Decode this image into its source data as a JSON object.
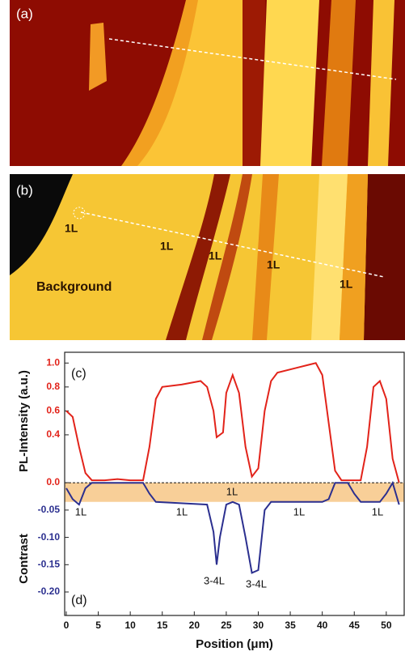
{
  "images": {
    "a": {
      "label": "(a)"
    },
    "b": {
      "label": "(b)",
      "annotations": [
        "1L",
        "1L",
        "1L",
        "1L",
        "1L",
        "Background"
      ]
    }
  },
  "chart_data": {
    "type": "line",
    "xlabel": "Position (μm)",
    "ylabel": "PL-Intensity (a.u.)",
    "y2label": "Contrast",
    "xlim": [
      -0.25,
      52.8
    ],
    "xticks": [
      0,
      5,
      10,
      15,
      20,
      25,
      30,
      35,
      40,
      45,
      50
    ],
    "ylim": [
      -1.11,
      1.09
    ],
    "yticks": [
      0.0,
      0.4,
      0.6,
      0.8,
      1.0
    ],
    "y2lim": [
      -0.243,
      0.239
    ],
    "y2ticks": [
      -0.2,
      -0.15,
      -0.1,
      -0.05
    ],
    "band_y2": [
      -0.035,
      0
    ],
    "band_color": "#f8cf98",
    "annotations": [
      "(c)",
      "(d)",
      "1L",
      "1L",
      "1L",
      "1L",
      "1L",
      "3-4L",
      "3-4L"
    ],
    "series": [
      {
        "color": "#e2231a",
        "x": [
          0,
          1,
          2,
          3,
          4,
          6,
          8,
          10,
          12,
          13,
          14,
          15,
          18,
          21,
          22,
          23,
          23.5,
          24.5,
          25,
          26,
          27,
          28,
          29,
          30,
          31,
          32,
          33,
          36,
          39,
          40,
          41,
          42,
          43,
          46,
          47,
          48,
          49,
          50,
          51,
          52
        ],
        "values": [
          0.6,
          0.55,
          0.3,
          0.08,
          0.02,
          0.02,
          0.03,
          0.02,
          0.02,
          0.3,
          0.7,
          0.8,
          0.82,
          0.85,
          0.8,
          0.6,
          0.38,
          0.42,
          0.75,
          0.9,
          0.75,
          0.3,
          0.05,
          0.12,
          0.6,
          0.85,
          0.92,
          0.96,
          1.0,
          0.9,
          0.5,
          0.1,
          0.02,
          0.02,
          0.3,
          0.8,
          0.85,
          0.7,
          0.2,
          0.0
        ]
      },
      {
        "color": "#2b2f8f",
        "axis": "y2",
        "x": [
          0,
          1,
          2,
          3,
          4,
          12,
          13,
          14,
          22,
          23,
          23.5,
          24,
          25,
          26,
          27,
          28,
          29,
          30,
          31,
          32,
          40,
          41,
          42,
          44,
          45,
          46,
          49,
          50,
          51,
          52
        ],
        "values": [
          -0.01,
          -0.03,
          -0.04,
          -0.01,
          0.0,
          0.0,
          -0.02,
          -0.035,
          -0.04,
          -0.09,
          -0.15,
          -0.1,
          -0.04,
          -0.035,
          -0.04,
          -0.1,
          -0.165,
          -0.16,
          -0.05,
          -0.035,
          -0.035,
          -0.03,
          0.0,
          0.0,
          -0.02,
          -0.035,
          -0.035,
          -0.02,
          0.0,
          -0.04
        ]
      }
    ]
  }
}
